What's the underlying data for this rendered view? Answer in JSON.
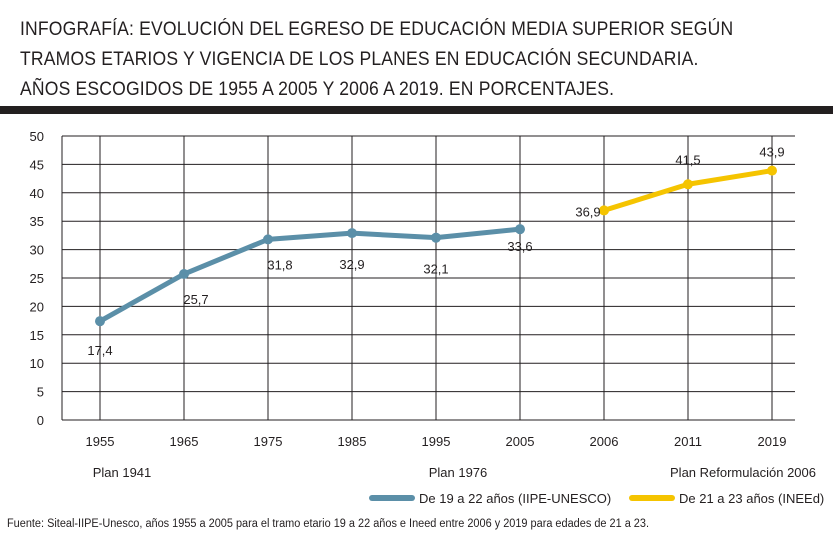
{
  "title": {
    "line1": "INFOGRAFÍA: EVOLUCIÓN DEL EGRESO DE EDUCACIÓN MEDIA SUPERIOR SEGÚN",
    "line2": "TRAMOS ETARIOS Y VIGENCIA DE LOS PLANES EN EDUCACIÓN SECUNDARIA.",
    "line3": "AÑOS ESCOGIDOS DE 1955 A 2005 Y 2006 A 2019. EN PORCENTAJES."
  },
  "chart_data": {
    "type": "line",
    "categories": [
      "1955",
      "1965",
      "1975",
      "1985",
      "1995",
      "2005",
      "2006",
      "2011",
      "2019"
    ],
    "series": [
      {
        "name": "De 19 a 22 años (IIPE-UNESCO)",
        "color": "#5b8fa8",
        "values": [
          17.4,
          25.7,
          31.8,
          32.9,
          32.1,
          33.6,
          null,
          null,
          null
        ],
        "labels": [
          "17,4",
          "25,7",
          "31,8",
          "32,9",
          "32,1",
          "33,6",
          null,
          null,
          null
        ]
      },
      {
        "name": "De 21 a 23 años (INEEd)",
        "color": "#f5c400",
        "values": [
          null,
          null,
          null,
          null,
          null,
          null,
          36.9,
          41.5,
          43.9
        ],
        "labels": [
          null,
          null,
          null,
          null,
          null,
          null,
          "36,9",
          "41,5",
          "43,9"
        ]
      }
    ],
    "ylim": [
      0,
      50
    ],
    "yticks": [
      0,
      5,
      10,
      15,
      20,
      25,
      30,
      35,
      40,
      45,
      50
    ],
    "grid": true,
    "plan_labels": [
      {
        "text": "Plan 1941",
        "category": "1955"
      },
      {
        "text": "Plan 1976",
        "category": "1995"
      },
      {
        "text": "Plan Reformulación 2006",
        "category": "2019"
      }
    ],
    "legend_position": "bottom-right"
  },
  "source_note": "Fuente: Siteal-IIPE-Unesco, años 1955 a 2005 para el tramo etario 19 a 22 años e Ineed entre 2006 y 2019 para edades de 21 a 23."
}
